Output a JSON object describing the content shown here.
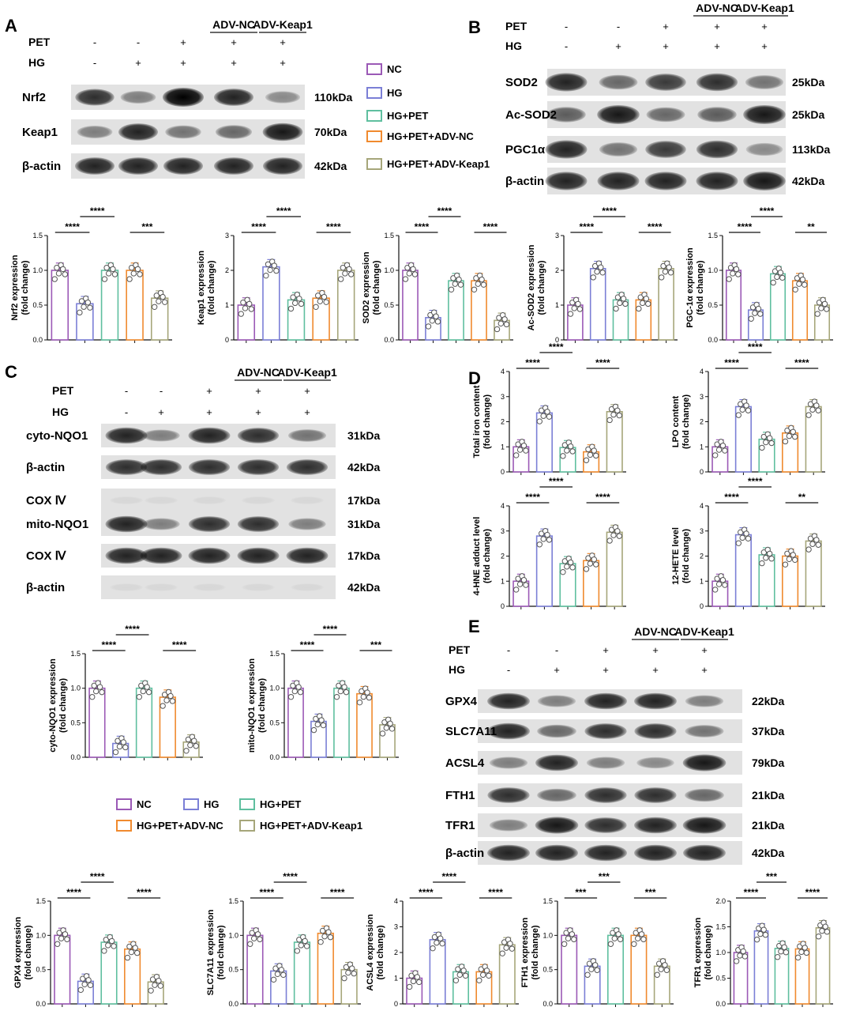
{
  "panels": {
    "A": {
      "label": "A",
      "conditions": [
        {
          "name": "PET",
          "values": [
            "-",
            "-",
            "+",
            "+",
            "+"
          ]
        },
        {
          "name": "HG",
          "values": [
            "-",
            "+",
            "+",
            "+",
            "+"
          ]
        }
      ],
      "group_headers": [
        "ADV-NC",
        "ADV-Keap1"
      ],
      "blots": [
        {
          "name": "Nrf2",
          "kda": "110kDa",
          "bands": [
            0.8,
            0.45,
            1.0,
            0.85,
            0.4
          ]
        },
        {
          "name": "Keap1",
          "kda": "70kDa",
          "bands": [
            0.45,
            0.85,
            0.5,
            0.55,
            0.9
          ]
        },
        {
          "name": "β-actin",
          "kda": "42kDa",
          "bands": [
            0.85,
            0.85,
            0.85,
            0.85,
            0.85
          ]
        }
      ]
    },
    "B": {
      "label": "B",
      "conditions": [
        {
          "name": "PET",
          "values": [
            "-",
            "-",
            "+",
            "+",
            "+"
          ]
        },
        {
          "name": "HG",
          "values": [
            "-",
            "+",
            "+",
            "+",
            "+"
          ]
        }
      ],
      "group_headers": [
        "ADV-NC",
        "ADV-Keap1"
      ],
      "blots": [
        {
          "name": "SOD2",
          "kda": "25kDa",
          "bands": [
            0.85,
            0.55,
            0.75,
            0.8,
            0.5
          ]
        },
        {
          "name": "Ac-SOD2",
          "kda": "25kDa",
          "bands": [
            0.6,
            0.9,
            0.55,
            0.6,
            0.9
          ]
        },
        {
          "name": "PGC1α",
          "kda": "113kDa",
          "bands": [
            0.85,
            0.5,
            0.75,
            0.8,
            0.4
          ]
        },
        {
          "name": "β-actin",
          "kda": "42kDa",
          "bands": [
            0.85,
            0.85,
            0.85,
            0.85,
            0.9
          ]
        }
      ]
    },
    "C": {
      "label": "C",
      "conditions": [
        {
          "name": "PET",
          "values": [
            "-",
            "-",
            "+",
            "+",
            "+"
          ]
        },
        {
          "name": "HG",
          "values": [
            "-",
            "+",
            "+",
            "+",
            "+"
          ]
        }
      ],
      "group_headers": [
        "ADV-NC",
        "ADV-Keap1"
      ],
      "blots": [
        {
          "name": "cyto-NQO1",
          "kda": "31kDa",
          "bands": [
            0.85,
            0.45,
            0.85,
            0.8,
            0.5
          ]
        },
        {
          "name": "β-actin",
          "kda": "42kDa",
          "bands": [
            0.8,
            0.8,
            0.8,
            0.8,
            0.8
          ]
        },
        {
          "name": "COX Ⅳ",
          "kda": "17kDa",
          "bands": [
            0.05,
            0.05,
            0.05,
            0.05,
            0.05
          ]
        },
        {
          "name": "mito-NQO1",
          "kda": "31kDa",
          "bands": [
            0.85,
            0.45,
            0.8,
            0.8,
            0.45
          ]
        },
        {
          "name": "COX Ⅳ",
          "kda": "17kDa",
          "bands": [
            0.85,
            0.85,
            0.85,
            0.85,
            0.85
          ]
        },
        {
          "name": "β-actin",
          "kda": "42kDa",
          "bands": [
            0.04,
            0.04,
            0.04,
            0.04,
            0.04
          ]
        }
      ]
    },
    "D": {
      "label": "D"
    },
    "E": {
      "label": "E",
      "conditions": [
        {
          "name": "PET",
          "values": [
            "-",
            "-",
            "+",
            "+",
            "+"
          ]
        },
        {
          "name": "HG",
          "values": [
            "-",
            "+",
            "+",
            "+",
            "+"
          ]
        }
      ],
      "group_headers": [
        "ADV-NC",
        "ADV-Keap1"
      ],
      "blots": [
        {
          "name": "GPX4",
          "kda": "22kDa",
          "bands": [
            0.85,
            0.45,
            0.85,
            0.85,
            0.45
          ]
        },
        {
          "name": "SLC7A11",
          "kda": "37kDa",
          "bands": [
            0.85,
            0.55,
            0.8,
            0.8,
            0.5
          ]
        },
        {
          "name": "ACSL4",
          "kda": "79kDa",
          "bands": [
            0.45,
            0.85,
            0.45,
            0.4,
            0.9
          ]
        },
        {
          "name": "FTH1",
          "kda": "21kDa",
          "bands": [
            0.8,
            0.55,
            0.8,
            0.8,
            0.55
          ]
        },
        {
          "name": "TFR1",
          "kda": "21kDa",
          "bands": [
            0.45,
            0.9,
            0.8,
            0.85,
            0.9
          ]
        },
        {
          "name": "β-actin",
          "kda": "42kDa",
          "bands": [
            0.85,
            0.85,
            0.85,
            0.85,
            0.85
          ]
        }
      ]
    }
  },
  "legend": {
    "items": [
      "NC",
      "HG",
      "HG+PET",
      "HG+PET+ADV-NC",
      "HG+PET+ADV-Keap1"
    ],
    "colors": [
      "#9b59b6",
      "#7b7fd6",
      "#5fbf9f",
      "#f08a2e",
      "#a6a67a"
    ]
  },
  "chart_data": [
    {
      "type": "bar",
      "panel": "A",
      "ylabel": "Nrf2 expression\n(fold change)",
      "categories": [
        "NC",
        "HG",
        "HG+PET",
        "HG+PET+ADV-NC",
        "HG+PET+ADV-Keap1"
      ],
      "values": [
        1.0,
        0.52,
        1.0,
        1.0,
        0.6
      ],
      "ylim": [
        0,
        1.5
      ],
      "yticks": [
        "0.0",
        "0.5",
        "1.0",
        "1.5"
      ],
      "significance": [
        {
          "from": 0,
          "to": 1,
          "label": "****"
        },
        {
          "from": 1,
          "to": 2,
          "label": "****"
        },
        {
          "from": 3,
          "to": 4,
          "label": "***"
        }
      ]
    },
    {
      "type": "bar",
      "panel": "A",
      "ylabel": "Keap1 expression\n(fold change)",
      "categories": [
        "NC",
        "HG",
        "HG+PET",
        "HG+PET+ADV-NC",
        "HG+PET+ADV-Keap1"
      ],
      "values": [
        1.0,
        2.1,
        1.15,
        1.2,
        2.0
      ],
      "ylim": [
        0,
        3
      ],
      "yticks": [
        "0",
        "1",
        "2",
        "3"
      ],
      "significance": [
        {
          "from": 0,
          "to": 1,
          "label": "****"
        },
        {
          "from": 1,
          "to": 2,
          "label": "****"
        },
        {
          "from": 3,
          "to": 4,
          "label": "****"
        }
      ]
    },
    {
      "type": "bar",
      "panel": "B",
      "ylabel": "SOD2 expression\n(fold change)",
      "categories": [
        "NC",
        "HG",
        "HG+PET",
        "HG+PET+ADV-NC",
        "HG+PET+ADV-Keap1"
      ],
      "values": [
        1.0,
        0.32,
        0.85,
        0.85,
        0.28
      ],
      "ylim": [
        0,
        1.5
      ],
      "yticks": [
        "0.0",
        "0.5",
        "1.0",
        "1.5"
      ],
      "significance": [
        {
          "from": 0,
          "to": 1,
          "label": "****"
        },
        {
          "from": 1,
          "to": 2,
          "label": "****"
        },
        {
          "from": 3,
          "to": 4,
          "label": "****"
        }
      ]
    },
    {
      "type": "bar",
      "panel": "B",
      "ylabel": "Ac-SOD2 expression\n(fold change)",
      "categories": [
        "NC",
        "HG",
        "HG+PET",
        "HG+PET+ADV-NC",
        "HG+PET+ADV-Keap1"
      ],
      "values": [
        1.0,
        2.05,
        1.15,
        1.15,
        2.05
      ],
      "ylim": [
        0,
        3
      ],
      "yticks": [
        "0",
        "1",
        "2",
        "3"
      ],
      "significance": [
        {
          "from": 0,
          "to": 1,
          "label": "****"
        },
        {
          "from": 1,
          "to": 2,
          "label": "****"
        },
        {
          "from": 3,
          "to": 4,
          "label": "****"
        }
      ]
    },
    {
      "type": "bar",
      "panel": "B",
      "ylabel": "PGC-1α expression\n(fold change)",
      "categories": [
        "NC",
        "HG",
        "HG+PET",
        "HG+PET+ADV-NC",
        "HG+PET+ADV-Keap1"
      ],
      "values": [
        1.0,
        0.43,
        0.95,
        0.85,
        0.5
      ],
      "ylim": [
        0,
        1.5
      ],
      "yticks": [
        "0.0",
        "0.5",
        "1.0",
        "1.5"
      ],
      "significance": [
        {
          "from": 0,
          "to": 1,
          "label": "****"
        },
        {
          "from": 1,
          "to": 2,
          "label": "****"
        },
        {
          "from": 3,
          "to": 4,
          "label": "**"
        }
      ]
    },
    {
      "type": "bar",
      "panel": "C",
      "ylabel": "cyto-NQO1 expression\n(fold change)",
      "categories": [
        "NC",
        "HG",
        "HG+PET",
        "HG+PET+ADV-NC",
        "HG+PET+ADV-Keap1"
      ],
      "values": [
        1.0,
        0.2,
        1.0,
        0.87,
        0.22
      ],
      "ylim": [
        0,
        1.5
      ],
      "yticks": [
        "0.0",
        "0.5",
        "1.0",
        "1.5"
      ],
      "significance": [
        {
          "from": 0,
          "to": 1,
          "label": "****"
        },
        {
          "from": 1,
          "to": 2,
          "label": "****"
        },
        {
          "from": 3,
          "to": 4,
          "label": "****"
        }
      ]
    },
    {
      "type": "bar",
      "panel": "C",
      "ylabel": "mito-NQO1 expression\n(fold change)",
      "categories": [
        "NC",
        "HG",
        "HG+PET",
        "HG+PET+ADV-NC",
        "HG+PET+ADV-Keap1"
      ],
      "values": [
        1.0,
        0.52,
        1.0,
        0.92,
        0.47
      ],
      "ylim": [
        0,
        1.5
      ],
      "yticks": [
        "0.0",
        "0.5",
        "1.0",
        "1.5"
      ],
      "significance": [
        {
          "from": 0,
          "to": 1,
          "label": "****"
        },
        {
          "from": 1,
          "to": 2,
          "label": "****"
        },
        {
          "from": 3,
          "to": 4,
          "label": "***"
        }
      ]
    },
    {
      "type": "bar",
      "panel": "D",
      "ylabel": "Total iron content\n(fold change)",
      "categories": [
        "NC",
        "HG",
        "HG+PET",
        "HG+PET+ADV-NC",
        "HG+PET+ADV-Keap1"
      ],
      "values": [
        1.0,
        2.35,
        0.97,
        0.8,
        2.4
      ],
      "ylim": [
        0,
        4
      ],
      "yticks": [
        "0",
        "1",
        "2",
        "3",
        "4"
      ],
      "significance": [
        {
          "from": 0,
          "to": 1,
          "label": "****"
        },
        {
          "from": 1,
          "to": 2,
          "label": "****"
        },
        {
          "from": 3,
          "to": 4,
          "label": "****"
        }
      ]
    },
    {
      "type": "bar",
      "panel": "D",
      "ylabel": "LPO content\n(fold change)",
      "categories": [
        "NC",
        "HG",
        "HG+PET",
        "HG+PET+ADV-NC",
        "HG+PET+ADV-Keap1"
      ],
      "values": [
        1.0,
        2.6,
        1.3,
        1.55,
        2.6
      ],
      "ylim": [
        0,
        4
      ],
      "yticks": [
        "0",
        "1",
        "2",
        "3",
        "4"
      ],
      "significance": [
        {
          "from": 0,
          "to": 1,
          "label": "****"
        },
        {
          "from": 1,
          "to": 2,
          "label": "****"
        },
        {
          "from": 3,
          "to": 4,
          "label": "****"
        }
      ]
    },
    {
      "type": "bar",
      "panel": "D",
      "ylabel": "4-HNE adduct level\n(fold change)",
      "categories": [
        "NC",
        "HG",
        "HG+PET",
        "HG+PET+ADV-NC",
        "HG+PET+ADV-Keap1"
      ],
      "values": [
        1.0,
        2.8,
        1.7,
        1.82,
        2.95
      ],
      "ylim": [
        0,
        4
      ],
      "yticks": [
        "0",
        "1",
        "2",
        "3",
        "4"
      ],
      "significance": [
        {
          "from": 0,
          "to": 1,
          "label": "****"
        },
        {
          "from": 1,
          "to": 2,
          "label": "****"
        },
        {
          "from": 3,
          "to": 4,
          "label": "****"
        }
      ]
    },
    {
      "type": "bar",
      "panel": "D",
      "ylabel": "12-HETE level\n(fold change)",
      "categories": [
        "NC",
        "HG",
        "HG+PET",
        "HG+PET+ADV-NC",
        "HG+PET+ADV-Keap1"
      ],
      "values": [
        1.0,
        2.85,
        2.05,
        2.0,
        2.6
      ],
      "ylim": [
        0,
        4
      ],
      "yticks": [
        "0",
        "1",
        "2",
        "3",
        "4"
      ],
      "significance": [
        {
          "from": 0,
          "to": 1,
          "label": "****"
        },
        {
          "from": 1,
          "to": 2,
          "label": "****"
        },
        {
          "from": 3,
          "to": 4,
          "label": "**"
        }
      ]
    },
    {
      "type": "bar",
      "panel": "E",
      "ylabel": "GPX4 expression\n(fold change)",
      "categories": [
        "NC",
        "HG",
        "HG+PET",
        "HG+PET+ADV-NC",
        "HG+PET+ADV-Keap1"
      ],
      "values": [
        1.0,
        0.33,
        0.9,
        0.8,
        0.32
      ],
      "ylim": [
        0,
        1.5
      ],
      "yticks": [
        "0.0",
        "0.5",
        "1.0",
        "1.5"
      ],
      "significance": [
        {
          "from": 0,
          "to": 1,
          "label": "****"
        },
        {
          "from": 1,
          "to": 2,
          "label": "****"
        },
        {
          "from": 3,
          "to": 4,
          "label": "****"
        }
      ]
    },
    {
      "type": "bar",
      "panel": "E",
      "ylabel": "SLC7A11 expression\n(fold change)",
      "categories": [
        "NC",
        "HG",
        "HG+PET",
        "HG+PET+ADV-NC",
        "HG+PET+ADV-Keap1"
      ],
      "values": [
        1.0,
        0.48,
        0.9,
        1.03,
        0.5
      ],
      "ylim": [
        0,
        1.5
      ],
      "yticks": [
        "0.0",
        "0.5",
        "1.0",
        "1.5"
      ],
      "significance": [
        {
          "from": 0,
          "to": 1,
          "label": "****"
        },
        {
          "from": 1,
          "to": 2,
          "label": "****"
        },
        {
          "from": 3,
          "to": 4,
          "label": "****"
        }
      ]
    },
    {
      "type": "bar",
      "panel": "E",
      "ylabel": "ACSL4 expression\n(fold change)",
      "categories": [
        "NC",
        "HG",
        "HG+PET",
        "HG+PET+ADV-NC",
        "HG+PET+ADV-Keap1"
      ],
      "values": [
        1.0,
        2.5,
        1.25,
        1.25,
        2.3
      ],
      "ylim": [
        0,
        4
      ],
      "yticks": [
        "0",
        "1",
        "2",
        "3",
        "4"
      ],
      "significance": [
        {
          "from": 0,
          "to": 1,
          "label": "****"
        },
        {
          "from": 1,
          "to": 2,
          "label": "****"
        },
        {
          "from": 3,
          "to": 4,
          "label": "****"
        }
      ]
    },
    {
      "type": "bar",
      "panel": "E",
      "ylabel": "FTH1 expression\n(fold change)",
      "categories": [
        "NC",
        "HG",
        "HG+PET",
        "HG+PET+ADV-NC",
        "HG+PET+ADV-Keap1"
      ],
      "values": [
        1.0,
        0.55,
        1.0,
        1.0,
        0.55
      ],
      "ylim": [
        0,
        1.5
      ],
      "yticks": [
        "0.0",
        "0.5",
        "1.0",
        "1.5"
      ],
      "significance": [
        {
          "from": 0,
          "to": 1,
          "label": "***"
        },
        {
          "from": 1,
          "to": 2,
          "label": "***"
        },
        {
          "from": 3,
          "to": 4,
          "label": "***"
        }
      ]
    },
    {
      "type": "bar",
      "panel": "E",
      "ylabel": "TFR1 expression\n(fold change)",
      "categories": [
        "NC",
        "HG",
        "HG+PET",
        "HG+PET+ADV-NC",
        "HG+PET+ADV-Keap1"
      ],
      "values": [
        1.0,
        1.42,
        1.08,
        1.07,
        1.48
      ],
      "ylim": [
        0,
        2.0
      ],
      "yticks": [
        "0.0",
        "0.5",
        "1.0",
        "1.5",
        "2.0"
      ],
      "significance": [
        {
          "from": 0,
          "to": 1,
          "label": "****"
        },
        {
          "from": 1,
          "to": 2,
          "label": "***"
        },
        {
          "from": 3,
          "to": 4,
          "label": "****"
        }
      ]
    }
  ]
}
